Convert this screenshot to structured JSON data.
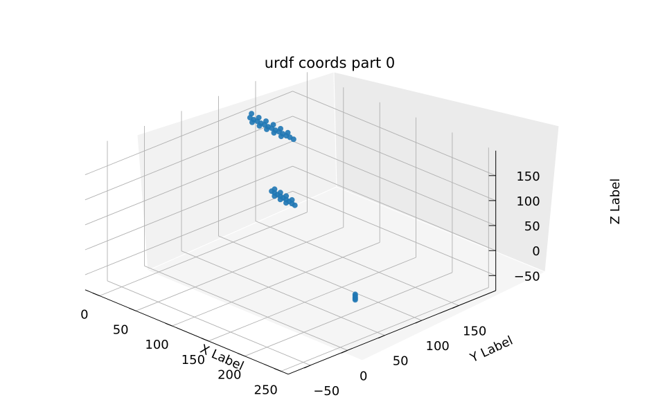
{
  "chart_data": {
    "type": "scatter",
    "projection": "3d",
    "title": "urdf coords part 0",
    "xlabel": "X Label",
    "ylabel": "Y Label",
    "zlabel": "Z Label",
    "xticks": [
      "0",
      "50",
      "100",
      "150",
      "200",
      "250"
    ],
    "yticks": [
      "−50",
      "0",
      "50",
      "100",
      "150"
    ],
    "zticks": [
      "−50",
      "0",
      "50",
      "100",
      "150"
    ],
    "xlim": [
      -20,
      260
    ],
    "ylim": [
      -80,
      200
    ],
    "zlim": [
      -80,
      200
    ],
    "grid": true,
    "marker_color": "#1f77b4",
    "series": [
      {
        "values": [
          {
            "x": 5,
            "y": 118,
            "z": 161
          },
          {
            "x": 10,
            "y": 118,
            "z": 160
          },
          {
            "x": 15,
            "y": 118,
            "z": 160
          },
          {
            "x": 20,
            "y": 118,
            "z": 159
          },
          {
            "x": 25,
            "y": 118,
            "z": 159
          },
          {
            "x": 30,
            "y": 118,
            "z": 158
          },
          {
            "x": 35,
            "y": 118,
            "z": 158
          },
          {
            "x": 40,
            "y": 118,
            "z": 157
          },
          {
            "x": 45,
            "y": 118,
            "z": 157
          },
          {
            "x": 50,
            "y": 118,
            "z": 156
          },
          {
            "x": 55,
            "y": 118,
            "z": 155
          },
          {
            "x": 60,
            "y": 118,
            "z": 155
          },
          {
            "x": 65,
            "y": 118,
            "z": 154
          },
          {
            "x": 5,
            "y": 120,
            "z": 168
          },
          {
            "x": 15,
            "y": 120,
            "z": 166
          },
          {
            "x": 25,
            "y": 120,
            "z": 165
          },
          {
            "x": 35,
            "y": 120,
            "z": 164
          },
          {
            "x": 45,
            "y": 120,
            "z": 162
          },
          {
            "x": 55,
            "y": 120,
            "z": 160
          },
          {
            "x": 10,
            "y": 116,
            "z": 156
          },
          {
            "x": 20,
            "y": 116,
            "z": 155
          },
          {
            "x": 30,
            "y": 116,
            "z": 154
          },
          {
            "x": 40,
            "y": 116,
            "z": 153
          },
          {
            "x": 50,
            "y": 116,
            "z": 152
          },
          {
            "x": 92,
            "y": 62,
            "z": 100
          },
          {
            "x": 96,
            "y": 62,
            "z": 99
          },
          {
            "x": 100,
            "y": 62,
            "z": 98
          },
          {
            "x": 104,
            "y": 62,
            "z": 97
          },
          {
            "x": 108,
            "y": 62,
            "z": 96
          },
          {
            "x": 112,
            "y": 62,
            "z": 95
          },
          {
            "x": 116,
            "y": 62,
            "z": 94
          },
          {
            "x": 120,
            "y": 62,
            "z": 92
          },
          {
            "x": 124,
            "y": 62,
            "z": 91
          },
          {
            "x": 94,
            "y": 64,
            "z": 104
          },
          {
            "x": 102,
            "y": 64,
            "z": 102
          },
          {
            "x": 110,
            "y": 64,
            "z": 100
          },
          {
            "x": 118,
            "y": 64,
            "z": 97
          },
          {
            "x": 98,
            "y": 60,
            "z": 95
          },
          {
            "x": 106,
            "y": 60,
            "z": 93
          },
          {
            "x": 114,
            "y": 60,
            "z": 91
          },
          {
            "x": 245,
            "y": 25,
            "z": 8
          },
          {
            "x": 245,
            "y": 25,
            "z": 5
          },
          {
            "x": 245,
            "y": 25,
            "z": 2
          },
          {
            "x": 245,
            "y": 25,
            "z": 0
          },
          {
            "x": 245,
            "y": 25,
            "z": -3
          }
        ]
      }
    ]
  }
}
